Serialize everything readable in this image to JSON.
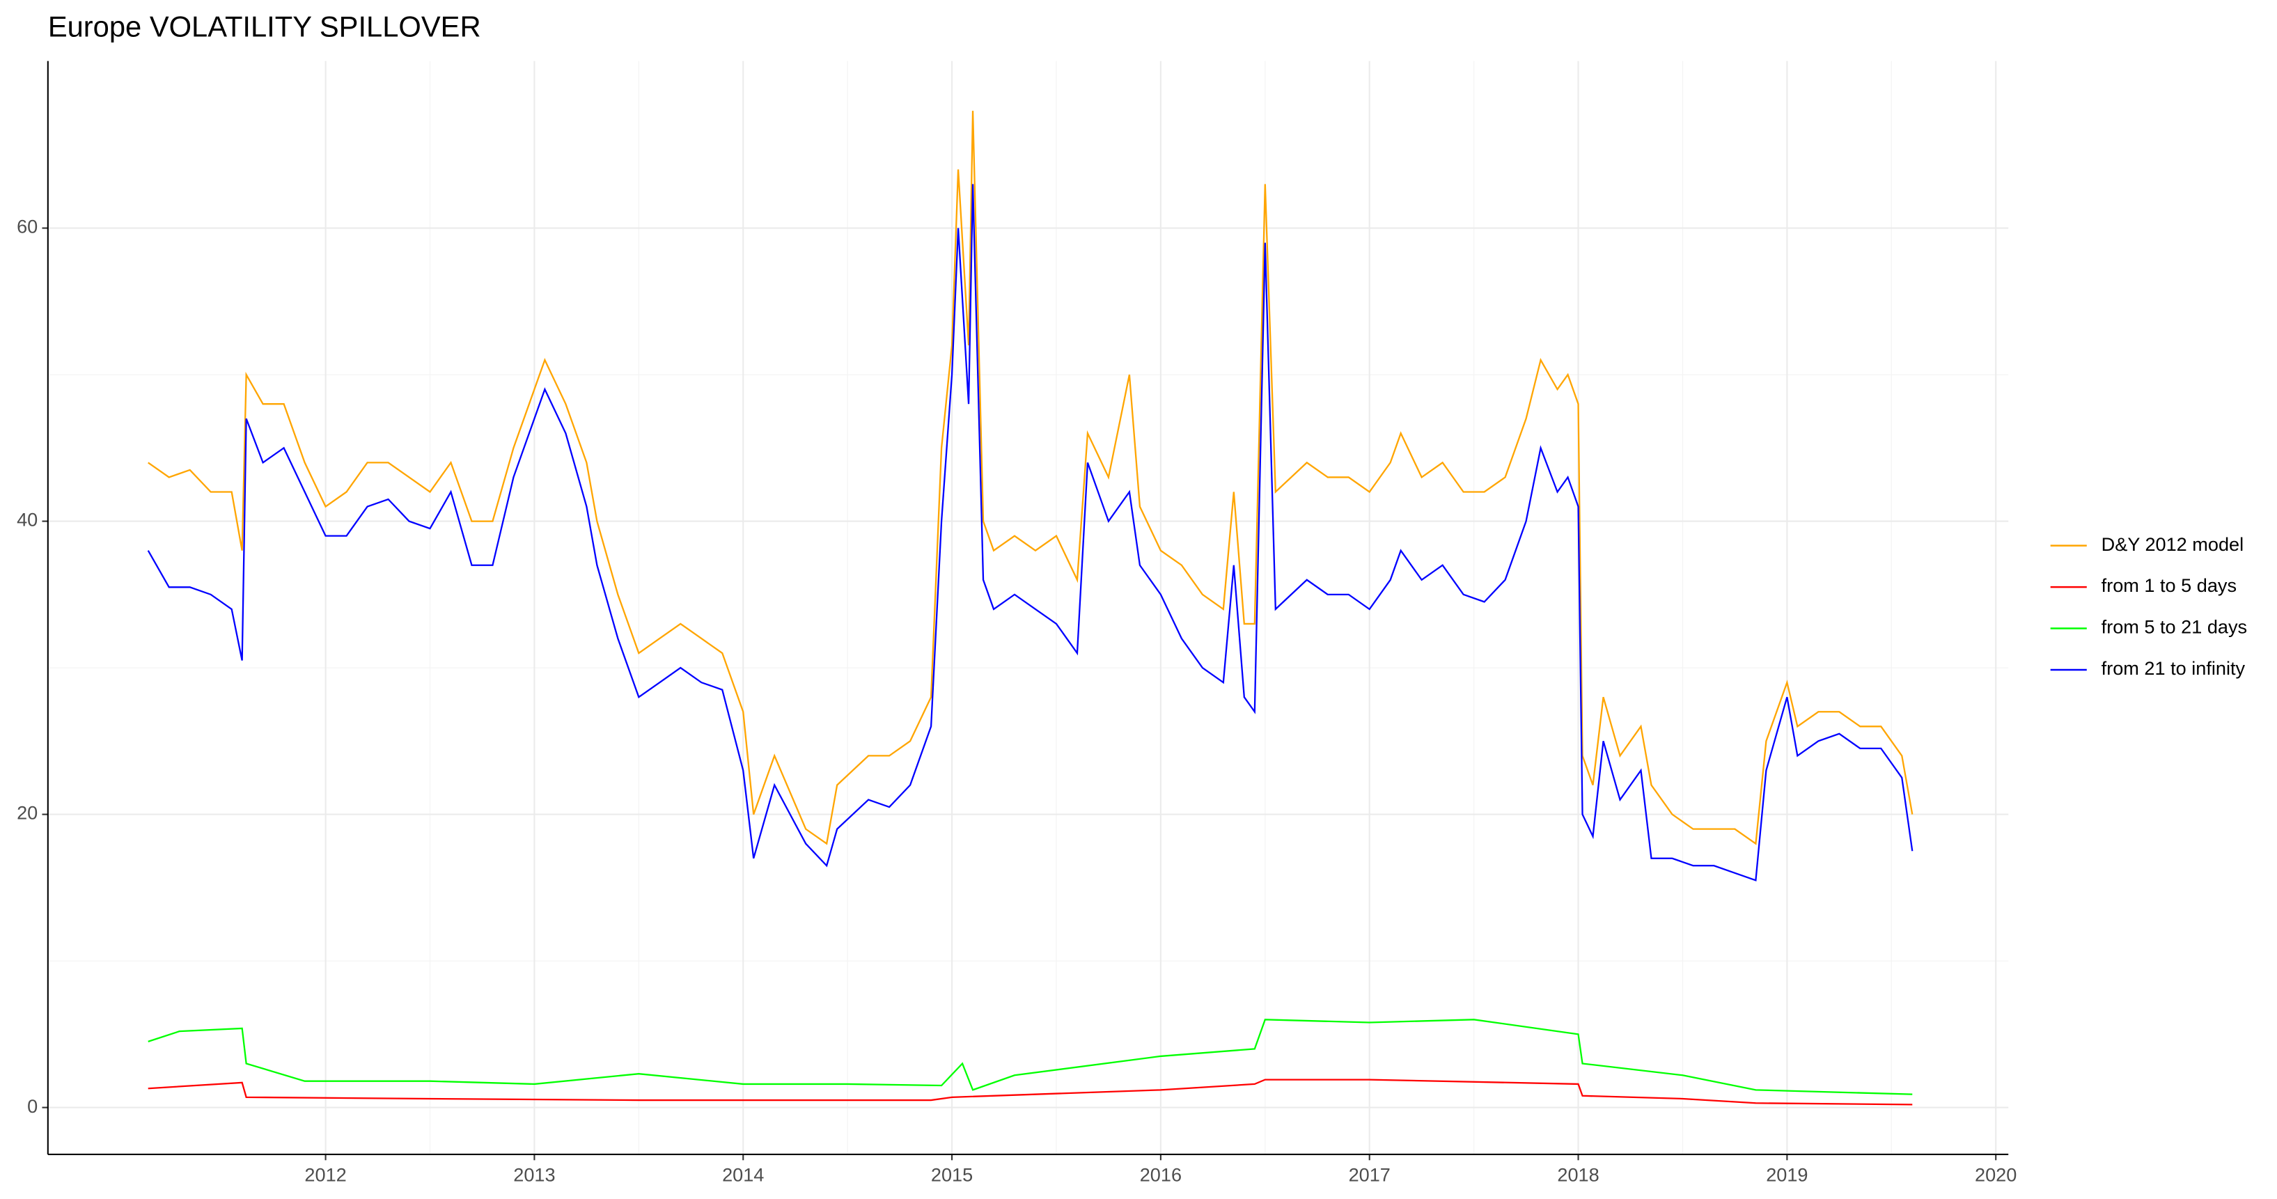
{
  "chart_data": {
    "type": "line",
    "title": "Europe VOLATILITY SPILLOVER",
    "xlim": [
      2010.67,
      2020.06
    ],
    "xticks": [
      2012,
      2013,
      2014,
      2015,
      2016,
      2017,
      2018,
      2019,
      2020
    ],
    "ylim": [
      -3.2,
      71.4
    ],
    "yticks": [
      0,
      20,
      40,
      60
    ],
    "grid": true,
    "legend": "right",
    "series": [
      {
        "name": "D&Y 2012 model",
        "color": "#ffa500",
        "x": [
          2011.15,
          2011.25,
          2011.35,
          2011.45,
          2011.55,
          2011.6,
          2011.62,
          2011.7,
          2011.8,
          2011.9,
          2012.0,
          2012.1,
          2012.2,
          2012.3,
          2012.4,
          2012.5,
          2012.6,
          2012.7,
          2012.8,
          2012.9,
          2013.0,
          2013.05,
          2013.15,
          2013.25,
          2013.3,
          2013.4,
          2013.5,
          2013.6,
          2013.7,
          2013.8,
          2013.9,
          2014.0,
          2014.05,
          2014.15,
          2014.3,
          2014.4,
          2014.45,
          2014.6,
          2014.7,
          2014.8,
          2014.9,
          2014.95,
          2015.0,
          2015.03,
          2015.08,
          2015.1,
          2015.15,
          2015.2,
          2015.3,
          2015.4,
          2015.5,
          2015.6,
          2015.65,
          2015.75,
          2015.85,
          2015.9,
          2016.0,
          2016.1,
          2016.2,
          2016.3,
          2016.35,
          2016.4,
          2016.45,
          2016.5,
          2016.55,
          2016.7,
          2016.8,
          2016.9,
          2017.0,
          2017.1,
          2017.15,
          2017.25,
          2017.35,
          2017.45,
          2017.55,
          2017.65,
          2017.75,
          2017.82,
          2017.9,
          2017.95,
          2018.0,
          2018.02,
          2018.07,
          2018.12,
          2018.2,
          2018.3,
          2018.35,
          2018.45,
          2018.55,
          2018.65,
          2018.75,
          2018.85,
          2018.9,
          2019.0,
          2019.05,
          2019.15,
          2019.25,
          2019.35,
          2019.45,
          2019.55,
          2019.6
        ],
        "values": [
          44,
          43,
          43.5,
          42,
          42,
          38,
          50,
          48,
          48,
          44,
          41,
          42,
          44,
          44,
          43,
          42,
          44,
          40,
          40,
          45,
          49,
          51,
          48,
          44,
          40,
          35,
          31,
          32,
          33,
          32,
          31,
          27,
          20,
          24,
          19,
          18,
          22,
          24,
          24,
          25,
          28,
          45,
          52,
          64,
          52,
          68,
          40,
          38,
          39,
          38,
          39,
          36,
          46,
          43,
          50,
          41,
          38,
          37,
          35,
          34,
          42,
          33,
          33,
          63,
          42,
          44,
          43,
          43,
          42,
          44,
          46,
          43,
          44,
          42,
          42,
          43,
          47,
          51,
          49,
          50,
          48,
          24,
          22,
          28,
          24,
          26,
          22,
          20,
          19,
          19,
          19,
          18,
          25,
          29,
          26,
          27,
          27,
          26,
          26,
          24,
          20
        ]
      },
      {
        "name": "from 1 to 5 days",
        "color": "#ff0000",
        "x": [
          2011.15,
          2011.6,
          2011.62,
          2012.5,
          2013.5,
          2014.9,
          2015.0,
          2016.0,
          2016.45,
          2016.5,
          2017.0,
          2018.0,
          2018.02,
          2018.5,
          2018.85,
          2019.6
        ],
        "values": [
          1.3,
          1.7,
          0.7,
          0.6,
          0.5,
          0.5,
          0.7,
          1.2,
          1.6,
          1.9,
          1.9,
          1.6,
          0.8,
          0.6,
          0.3,
          0.2
        ]
      },
      {
        "name": "from 5 to 21 days",
        "color": "#00ff00",
        "x": [
          2011.15,
          2011.3,
          2011.6,
          2011.62,
          2011.9,
          2012.5,
          2013.0,
          2013.5,
          2014.0,
          2014.5,
          2014.95,
          2015.05,
          2015.1,
          2015.3,
          2016.0,
          2016.45,
          2016.5,
          2017.0,
          2017.5,
          2018.0,
          2018.02,
          2018.5,
          2018.85,
          2019.6
        ],
        "values": [
          4.5,
          5.2,
          5.4,
          3.0,
          1.8,
          1.8,
          1.6,
          2.3,
          1.6,
          1.6,
          1.5,
          3.0,
          1.2,
          2.2,
          3.5,
          4.0,
          6.0,
          5.8,
          6.0,
          5.0,
          3.0,
          2.2,
          1.2,
          0.9
        ]
      },
      {
        "name": "from 21 to infinity",
        "color": "#0000ff",
        "x": [
          2011.15,
          2011.25,
          2011.35,
          2011.45,
          2011.55,
          2011.6,
          2011.62,
          2011.7,
          2011.8,
          2011.9,
          2012.0,
          2012.1,
          2012.2,
          2012.3,
          2012.4,
          2012.5,
          2012.6,
          2012.7,
          2012.8,
          2012.9,
          2013.0,
          2013.05,
          2013.15,
          2013.25,
          2013.3,
          2013.4,
          2013.5,
          2013.6,
          2013.7,
          2013.8,
          2013.9,
          2014.0,
          2014.05,
          2014.15,
          2014.3,
          2014.4,
          2014.45,
          2014.6,
          2014.7,
          2014.8,
          2014.9,
          2014.95,
          2015.0,
          2015.03,
          2015.08,
          2015.1,
          2015.15,
          2015.2,
          2015.3,
          2015.4,
          2015.5,
          2015.6,
          2015.65,
          2015.75,
          2015.85,
          2015.9,
          2016.0,
          2016.1,
          2016.2,
          2016.3,
          2016.35,
          2016.4,
          2016.45,
          2016.5,
          2016.55,
          2016.7,
          2016.8,
          2016.9,
          2017.0,
          2017.1,
          2017.15,
          2017.25,
          2017.35,
          2017.45,
          2017.55,
          2017.65,
          2017.75,
          2017.82,
          2017.9,
          2017.95,
          2018.0,
          2018.02,
          2018.07,
          2018.12,
          2018.2,
          2018.3,
          2018.35,
          2018.45,
          2018.55,
          2018.65,
          2018.75,
          2018.85,
          2018.9,
          2019.0,
          2019.05,
          2019.15,
          2019.25,
          2019.35,
          2019.45,
          2019.55,
          2019.6
        ],
        "values": [
          38,
          35.5,
          35.5,
          35,
          34,
          30.5,
          47,
          44,
          45,
          42,
          39,
          39,
          41,
          41.5,
          40,
          39.5,
          42,
          37,
          37,
          43,
          47,
          49,
          46,
          41,
          37,
          32,
          28,
          29,
          30,
          29,
          28.5,
          23,
          17,
          22,
          18,
          16.5,
          19,
          21,
          20.5,
          22,
          26,
          40,
          50,
          60,
          48,
          63,
          36,
          34,
          35,
          34,
          33,
          31,
          44,
          40,
          42,
          37,
          35,
          32,
          30,
          29,
          37,
          28,
          27,
          59,
          34,
          36,
          35,
          35,
          34,
          36,
          38,
          36,
          37,
          35,
          34.5,
          36,
          40,
          45,
          42,
          43,
          41,
          20,
          18.5,
          25,
          21,
          23,
          17,
          17,
          16.5,
          16.5,
          16,
          15.5,
          23,
          28,
          24,
          25,
          25.5,
          24.5,
          24.5,
          22.5,
          17.5
        ]
      }
    ]
  }
}
